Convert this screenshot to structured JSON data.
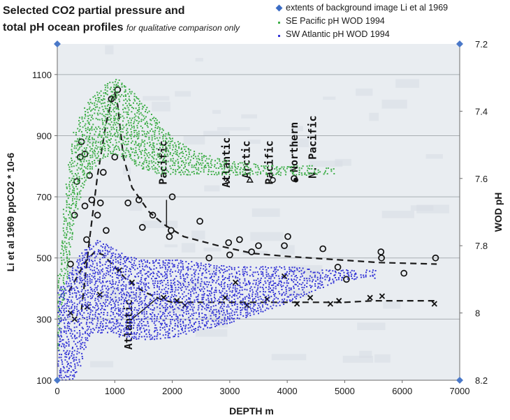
{
  "chart_data": {
    "type": "scatter",
    "title_line1": "Selected CO2 partial pressure and",
    "title_line2": "total pH ocean profiles",
    "title_note": "for qualitative comparison only",
    "xlabel": "DEPTH m",
    "ylabel_left": "Li et al 1969 ppCO2  * 10-6",
    "ylabel_right": "WOD pH",
    "xlim": [
      0,
      7000
    ],
    "ylim_left": [
      100,
      1200
    ],
    "ylim_right": [
      8.2,
      7.2
    ],
    "x_ticks": [
      "0",
      "1000",
      "2000",
      "3000",
      "4000",
      "5000",
      "6000",
      "7000"
    ],
    "y_left_ticks": [
      "100",
      "300",
      "500",
      "700",
      "900",
      "1100"
    ],
    "y_right_ticks": [
      "7.2",
      "7.4",
      "7.6",
      "7.8",
      "8",
      "8.2"
    ],
    "grid": "horizontal",
    "legend_position": "top-right",
    "series": [
      {
        "name": "extents of background image Li et al 1969",
        "marker": "diamond",
        "color": "#4a78c8",
        "x": [
          0,
          7000,
          0,
          7000
        ],
        "y": [
          100,
          100,
          1200,
          1200
        ]
      },
      {
        "name": "SE Pacific pH WOD 1994",
        "marker": "dot",
        "color": "#3fae49",
        "cloud_depths": [
          0,
          50,
          100,
          150,
          200,
          250,
          300,
          400,
          500,
          600,
          700,
          800,
          900,
          1000,
          1200,
          1400,
          1600,
          1800,
          2000,
          2400,
          2800,
          3200,
          3600,
          4000,
          4400,
          4800
        ],
        "cloud_ph_min": [
          7.88,
          7.77,
          7.67,
          7.59,
          7.52,
          7.47,
          7.44,
          7.4,
          7.37,
          7.35,
          7.33,
          7.32,
          7.31,
          7.3,
          7.33,
          7.36,
          7.4,
          7.44,
          7.48,
          7.52,
          7.54,
          7.55,
          7.56,
          7.56,
          7.56,
          7.57
        ],
        "cloud_ph_max": [
          8.12,
          8.02,
          7.95,
          7.88,
          7.82,
          7.76,
          7.7,
          7.64,
          7.6,
          7.57,
          7.55,
          7.54,
          7.53,
          7.53,
          7.55,
          7.57,
          7.58,
          7.59,
          7.59,
          7.59,
          7.59,
          7.59,
          7.59,
          7.59,
          7.59,
          7.59
        ]
      },
      {
        "name": "SW Atlantic pH WOD 1994",
        "marker": "dot",
        "color": "#3535d6",
        "cloud_depths": [
          0,
          100,
          200,
          300,
          400,
          500,
          600,
          700,
          800,
          1000,
          1200,
          1500,
          1800,
          2100,
          2500,
          3000,
          3500,
          4000,
          4500,
          5000,
          5500
        ],
        "cloud_ph_min": [
          8.2,
          8.2,
          8.2,
          8.19,
          8.14,
          8.08,
          8.06,
          8.06,
          8.06,
          8.07,
          8.08,
          8.08,
          8.08,
          8.07,
          8.05,
          8.03,
          8.0,
          7.97,
          7.93,
          7.9,
          7.9
        ],
        "cloud_ph_max": [
          7.93,
          7.9,
          7.87,
          7.84,
          7.82,
          7.8,
          7.79,
          7.78,
          7.79,
          7.81,
          7.83,
          7.84,
          7.84,
          7.84,
          7.85,
          7.86,
          7.86,
          7.86,
          7.87,
          7.87,
          7.87
        ]
      }
    ],
    "background_image": {
      "curves": [
        {
          "label": "Pacific",
          "style": "dashed",
          "x": [
            420,
            560,
            700,
            850,
            950,
            1000,
            1050,
            1150,
            1300,
            1600,
            1850,
            2200,
            2800,
            3400,
            4000,
            4800,
            5600,
            6600
          ],
          "y": [
            330,
            560,
            770,
            940,
            1020,
            1040,
            1000,
            830,
            730,
            650,
            610,
            570,
            540,
            515,
            505,
            495,
            485,
            480
          ]
        },
        {
          "label": "Atlantic",
          "style": "dashed",
          "x": [
            200,
            350,
            500,
            650,
            800,
            1000,
            1200,
            1500,
            1800,
            2000,
            2500,
            3000,
            3500,
            4000,
            4500,
            5000,
            5500,
            6000,
            6600
          ],
          "y": [
            390,
            440,
            490,
            520,
            510,
            470,
            430,
            390,
            365,
            355,
            355,
            355,
            355,
            355,
            355,
            355,
            360,
            360,
            360
          ]
        }
      ],
      "pacific_circles": {
        "x": [
          230,
          300,
          340,
          400,
          420,
          480,
          480,
          510,
          560,
          600,
          700,
          750,
          800,
          850,
          940,
          1050,
          1000,
          1230,
          1420,
          1480,
          1660,
          1950,
          1980,
          2000,
          2480,
          2640,
          2980,
          3000,
          3170,
          3380,
          3500,
          3950,
          4010,
          4120,
          4620,
          4880,
          5030,
          5630,
          5640,
          6030,
          6580
        ],
        "y": [
          480,
          640,
          750,
          830,
          880,
          840,
          670,
          560,
          770,
          690,
          640,
          680,
          780,
          590,
          1020,
          1050,
          830,
          680,
          690,
          600,
          640,
          570,
          590,
          700,
          620,
          500,
          550,
          510,
          560,
          520,
          540,
          540,
          570,
          760,
          530,
          470,
          430,
          520,
          500,
          450,
          500
        ]
      },
      "atlantic_crosses": {
        "x": [
          230,
          300,
          520,
          740,
          1080,
          1300,
          1850,
          2080,
          2220,
          2920,
          3100,
          3300,
          3650,
          3950,
          4170,
          4400,
          4750,
          4900,
          5440,
          5650,
          6560
        ],
        "y": [
          320,
          300,
          340,
          380,
          460,
          420,
          370,
          360,
          345,
          370,
          420,
          345,
          365,
          440,
          350,
          370,
          350,
          360,
          370,
          375,
          350
        ]
      },
      "labels": [
        {
          "text": "Atlantic",
          "x": 1300,
          "y": 200,
          "rotate": -90
        },
        {
          "text": "Pacific",
          "x": 1900,
          "y": 740,
          "rotate": -90
        },
        {
          "text": "Atlantic",
          "x": 3000,
          "y": 730,
          "rotate": -90
        },
        {
          "text": "Arctic",
          "x": 3350,
          "y": 760,
          "rotate": -90
        },
        {
          "text": "Pacific",
          "x": 3750,
          "y": 740,
          "rotate": -90
        },
        {
          "text": "Northern",
          "x": 4180,
          "y": 780,
          "rotate": -90
        },
        {
          "text": "N. Pacific",
          "x": 4500,
          "y": 760,
          "rotate": -90
        }
      ],
      "legend_marks": [
        {
          "marker": "x",
          "x": 2960,
          "y": 755
        },
        {
          "marker": "triangle",
          "x": 3350,
          "y": 755
        },
        {
          "marker": "circle",
          "x": 3750,
          "y": 755
        },
        {
          "marker": "dot",
          "x": 4150,
          "y": 755
        }
      ]
    }
  }
}
